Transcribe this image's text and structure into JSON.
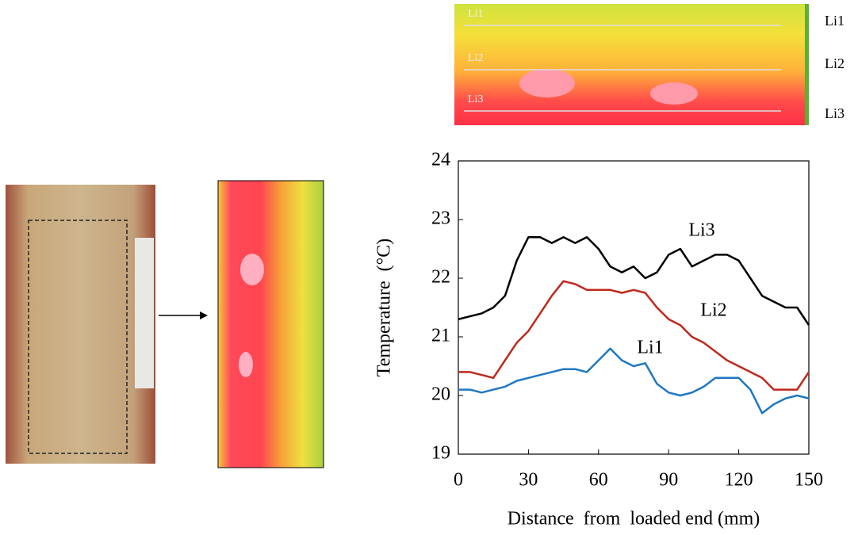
{
  "chart_data": {
    "type": "line",
    "xlabel": "Distance  from  loaded end (mm)",
    "ylabel": "Temperature  (°C)",
    "x": [
      0,
      5,
      10,
      15,
      20,
      25,
      30,
      35,
      40,
      45,
      50,
      55,
      60,
      65,
      70,
      75,
      80,
      85,
      90,
      95,
      100,
      105,
      110,
      115,
      120,
      125,
      130,
      135,
      140,
      145,
      150
    ],
    "series": [
      {
        "name": "Li1",
        "color": "#1f77c4",
        "values": [
          20.1,
          20.1,
          20.05,
          20.1,
          20.15,
          20.25,
          20.3,
          20.35,
          20.4,
          20.45,
          20.45,
          20.4,
          20.6,
          20.8,
          20.6,
          20.5,
          20.55,
          20.2,
          20.05,
          20.0,
          20.05,
          20.15,
          20.3,
          20.3,
          20.3,
          20.1,
          19.7,
          19.85,
          19.95,
          20.0,
          19.95
        ]
      },
      {
        "name": "Li2",
        "color": "#c0281c",
        "values": [
          20.4,
          20.4,
          20.35,
          20.3,
          20.6,
          20.9,
          21.1,
          21.4,
          21.7,
          21.95,
          21.9,
          21.8,
          21.8,
          21.8,
          21.75,
          21.8,
          21.75,
          21.5,
          21.3,
          21.2,
          21.0,
          20.9,
          20.75,
          20.6,
          20.5,
          20.4,
          20.3,
          20.1,
          20.1,
          20.1,
          20.4
        ]
      },
      {
        "name": "Li3",
        "color": "#000000",
        "values": [
          21.3,
          21.35,
          21.4,
          21.5,
          21.7,
          22.3,
          22.7,
          22.7,
          22.6,
          22.7,
          22.6,
          22.7,
          22.5,
          22.2,
          22.1,
          22.2,
          22.0,
          22.1,
          22.4,
          22.5,
          22.2,
          22.3,
          22.4,
          22.4,
          22.3,
          22.0,
          21.7,
          21.6,
          21.5,
          21.5,
          21.2
        ]
      }
    ],
    "xlim": [
      0,
      150
    ],
    "xticks": [
      0,
      30,
      60,
      90,
      120,
      150
    ],
    "ylim": [
      19,
      24
    ],
    "yticks": [
      19,
      20,
      21,
      22,
      23,
      24
    ],
    "grid": false
  }
}
